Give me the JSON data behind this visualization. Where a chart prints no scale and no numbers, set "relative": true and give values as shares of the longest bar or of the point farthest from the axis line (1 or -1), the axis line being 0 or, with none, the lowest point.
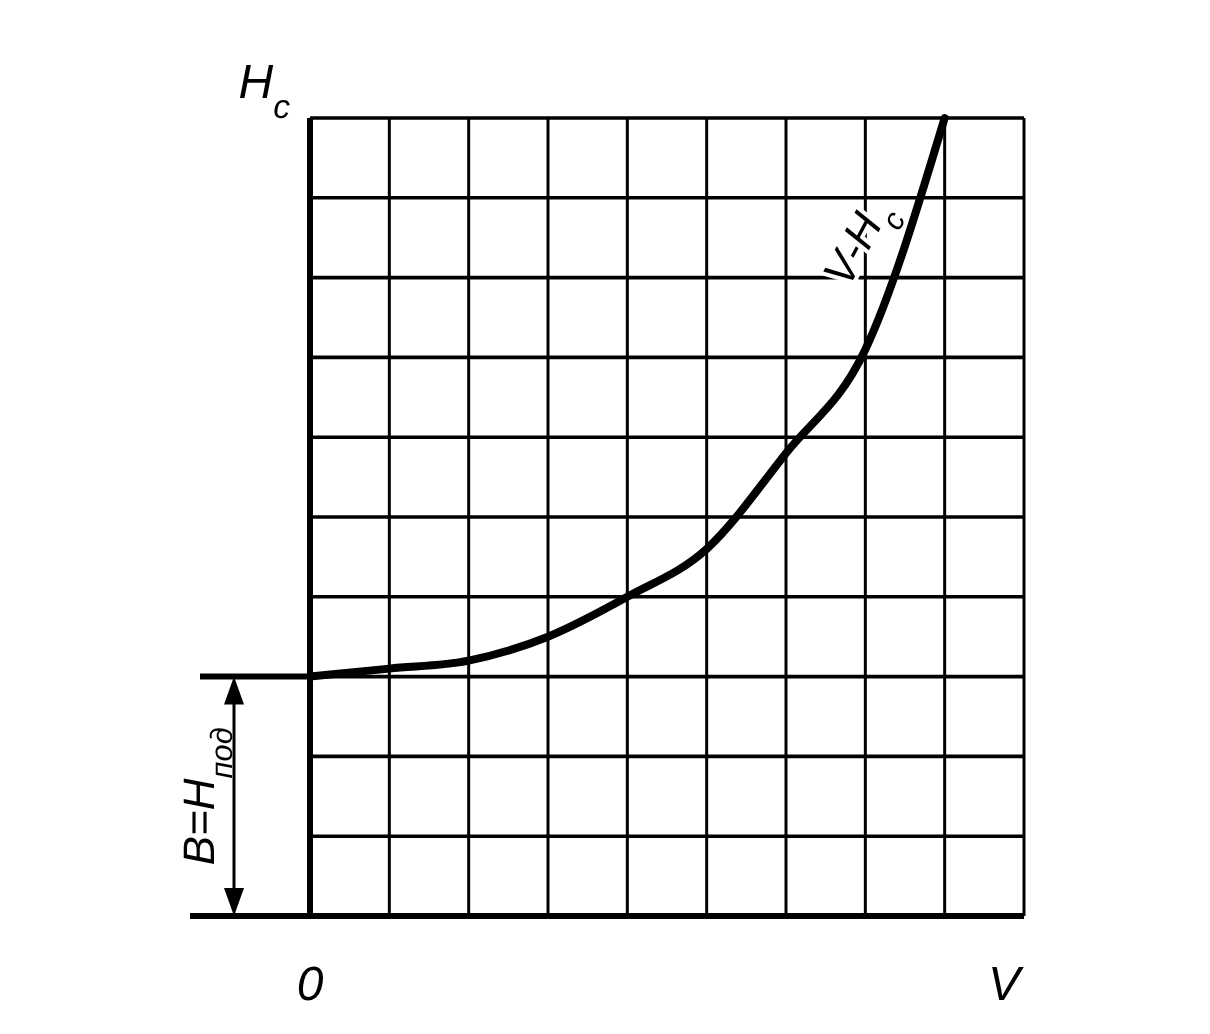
{
  "chart_data": {
    "type": "line",
    "relative": true,
    "ylabel": "H$_{c}$",
    "xlabel": "V",
    "categories": [
      null,
      null,
      null,
      null,
      null,
      null,
      null,
      null,
      null,
      null
    ],
    "grid": true,
    "annotations": [
      "В=H$_{под}$",
      "0"
    ],
    "series": [
      {
        "name": "V-H$_{c}$",
        "color": "#000000",
        "values": [
          0.3,
          0.31,
          0.32,
          0.35,
          0.4,
          0.46,
          0.58,
          0.71,
          1.0,
          null
        ]
      }
    ]
  }
}
